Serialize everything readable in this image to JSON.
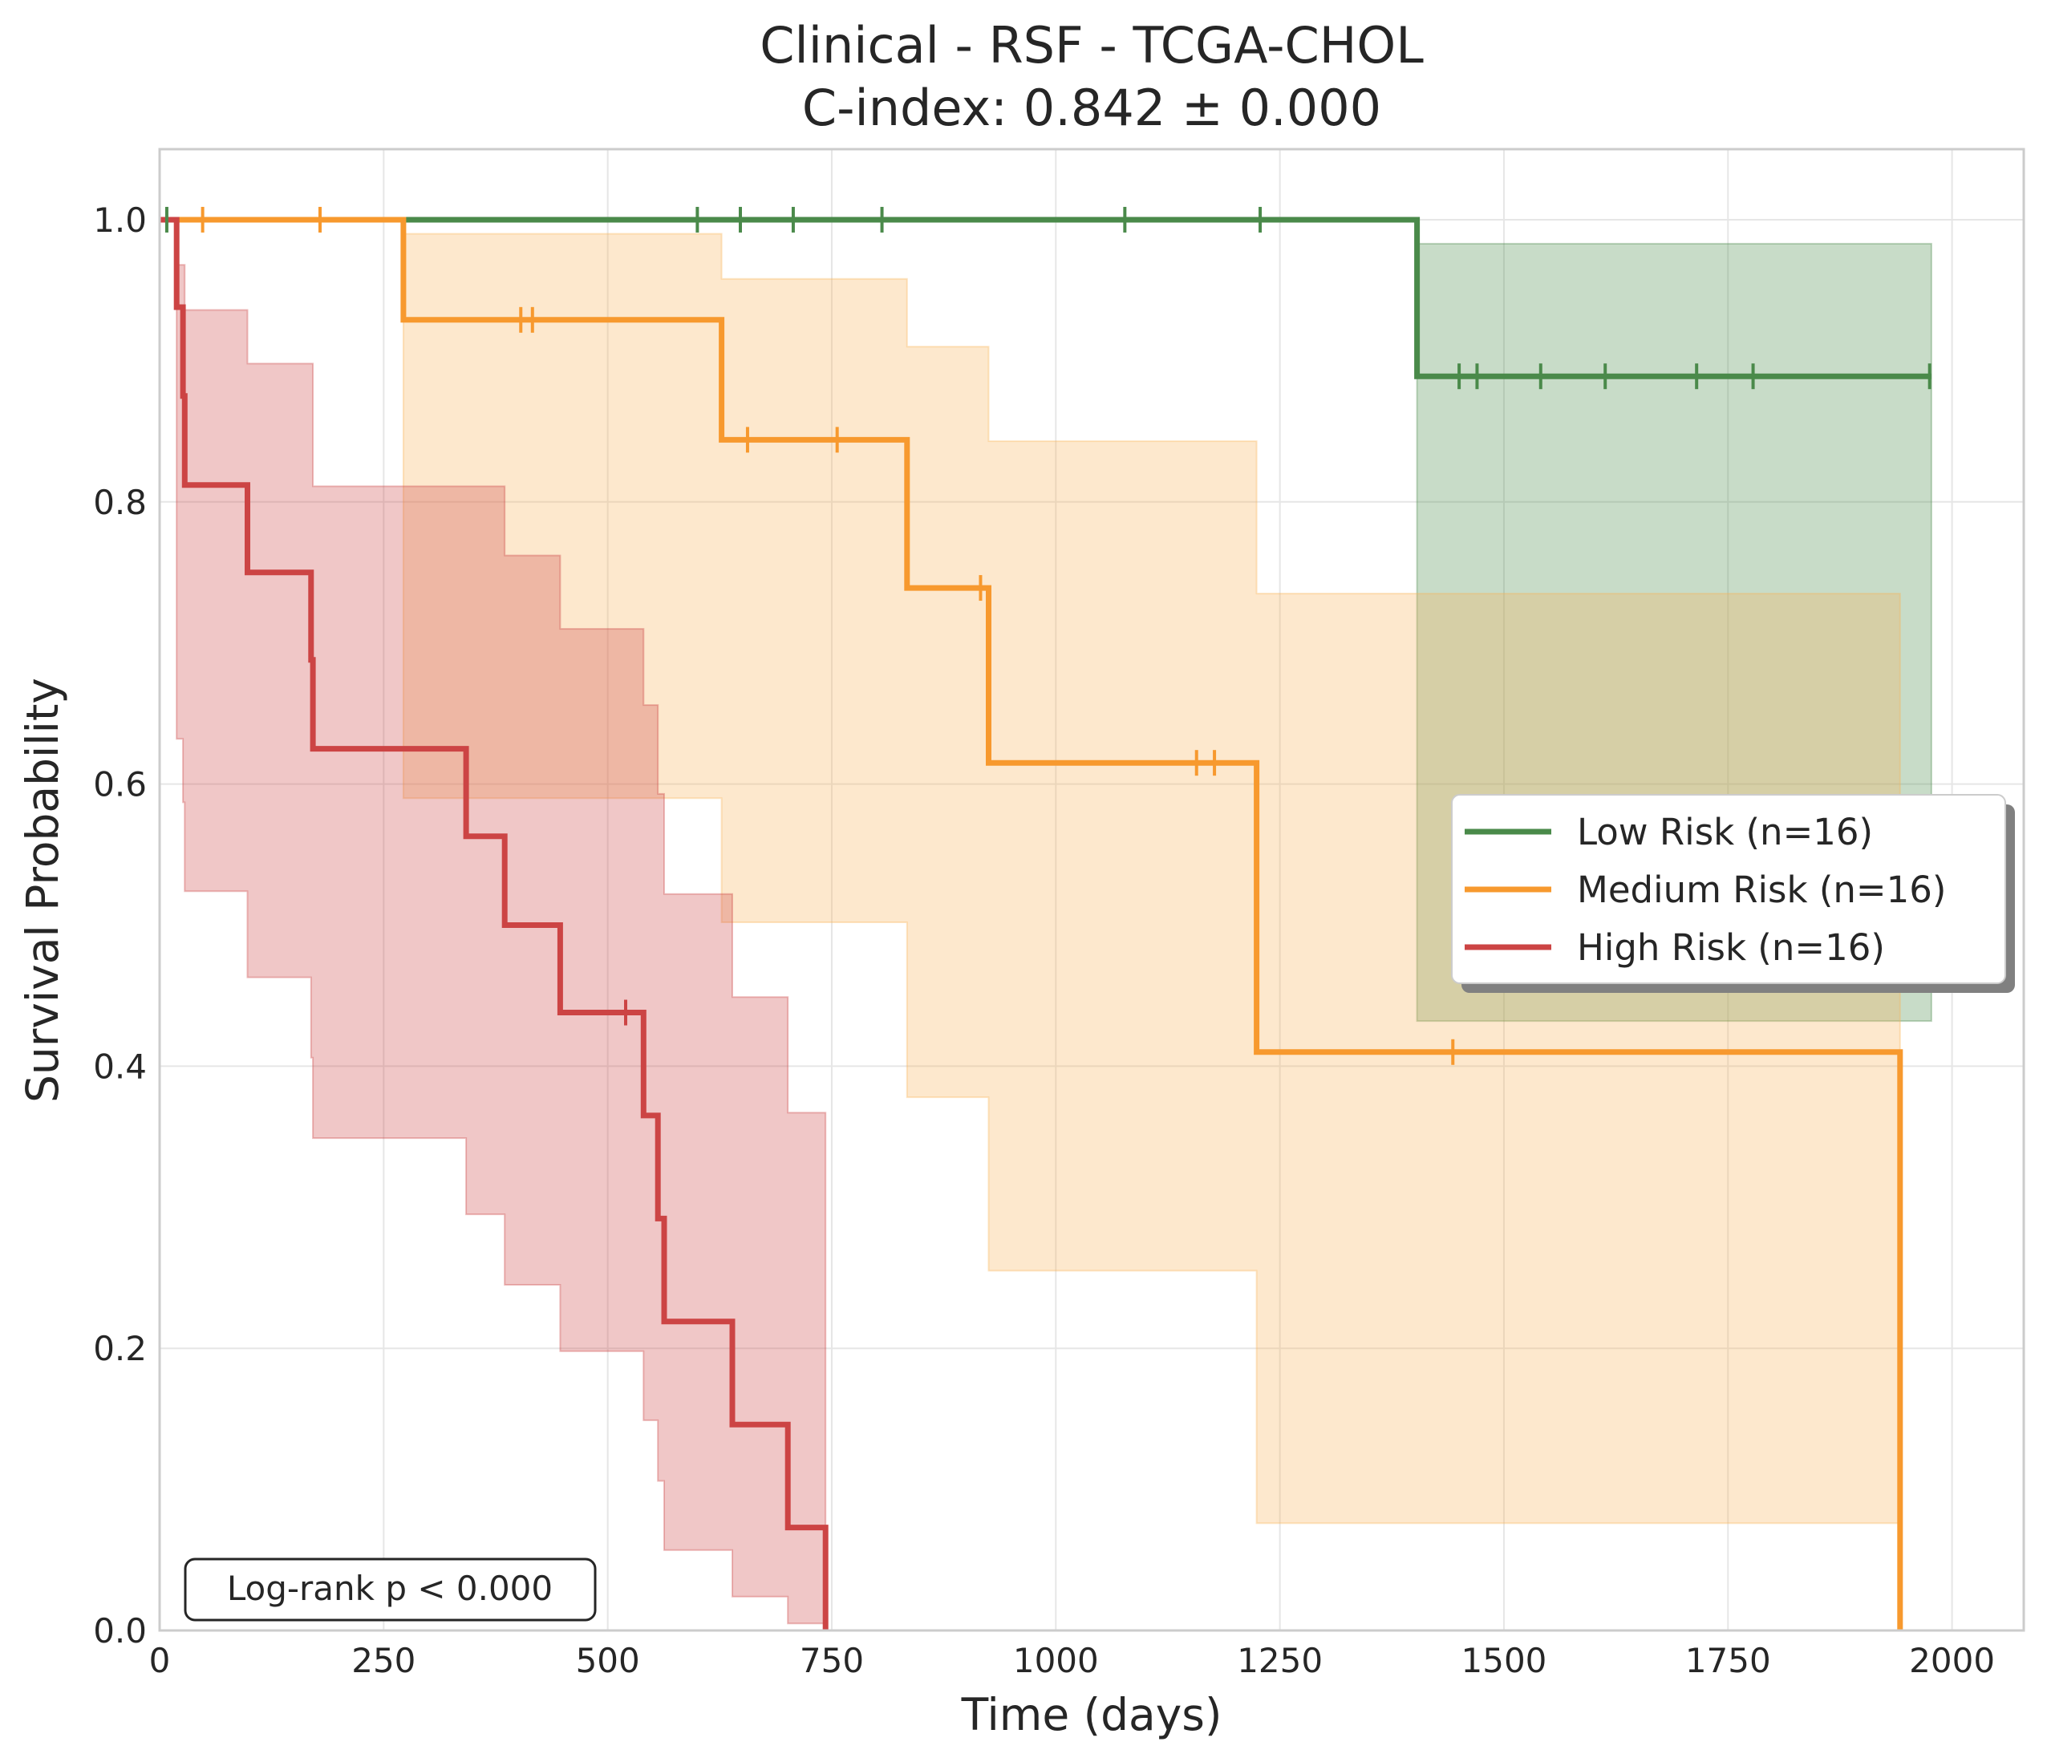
{
  "chart_data": {
    "type": "line",
    "subtype": "kaplan-meier",
    "title": "Clinical - RSF - TCGA-CHOL",
    "subtitle": "C-index: 0.842 ± 0.000",
    "xlabel": "Time (days)",
    "ylabel": "Survival Probability",
    "xlim": [
      0,
      2080
    ],
    "ylim": [
      0,
      1.05
    ],
    "xticks": [
      0,
      250,
      500,
      750,
      1000,
      1250,
      1500,
      1750,
      2000
    ],
    "xtick_labels": [
      "0",
      "250",
      "500",
      "750",
      "1000",
      "1250",
      "1500",
      "1750",
      "2000"
    ],
    "yticks": [
      0.0,
      0.2,
      0.4,
      0.6,
      0.8,
      1.0
    ],
    "ytick_labels": [
      "0.0",
      "0.2",
      "0.4",
      "0.6",
      "0.8",
      "1.0"
    ],
    "grid": true,
    "legend_position": "center-right",
    "annotation": "Log-rank p < 0.000",
    "series": [
      {
        "name": "Low Risk (n=16)",
        "color": "#4a8a4a",
        "fill_color": "#4a8a4a",
        "steps": [
          [
            0,
            1.0
          ],
          [
            1403,
            0.889
          ],
          [
            1977,
            0.889
          ]
        ],
        "ci": [
          [
            0,
            1.0,
            1.0
          ],
          [
            1403,
            0.432,
            0.983
          ],
          [
            1977,
            0.432,
            0.983
          ]
        ],
        "censors": [
          [
            8,
            1.0
          ],
          [
            600,
            1.0
          ],
          [
            648,
            1.0
          ],
          [
            707,
            1.0
          ],
          [
            806,
            1.0
          ],
          [
            1077,
            1.0
          ],
          [
            1228,
            1.0
          ],
          [
            1450,
            0.889
          ],
          [
            1470,
            0.889
          ],
          [
            1541,
            0.889
          ],
          [
            1613,
            0.889
          ],
          [
            1715,
            0.889
          ],
          [
            1778,
            0.889
          ],
          [
            1975,
            0.889
          ]
        ]
      },
      {
        "name": "Medium Risk (n=16)",
        "color": "#f7992e",
        "fill_color": "#f9b45a",
        "steps": [
          [
            0,
            1.0
          ],
          [
            272,
            0.929
          ],
          [
            627,
            0.844
          ],
          [
            834,
            0.739
          ],
          [
            925,
            0.615
          ],
          [
            1224,
            0.41
          ],
          [
            1942,
            0.0
          ]
        ],
        "ci": [
          [
            0,
            1.0,
            1.0
          ],
          [
            272,
            0.59,
            0.99
          ],
          [
            627,
            0.502,
            0.958
          ],
          [
            834,
            0.378,
            0.91
          ],
          [
            925,
            0.255,
            0.843
          ],
          [
            1224,
            0.076,
            0.735
          ],
          [
            1942,
            0.076,
            0.735
          ]
        ],
        "censors": [
          [
            48,
            1.0
          ],
          [
            179,
            1.0
          ],
          [
            403,
            0.929
          ],
          [
            416,
            0.929
          ],
          [
            656,
            0.844
          ],
          [
            756,
            0.844
          ],
          [
            916,
            0.739
          ],
          [
            1157,
            0.615
          ],
          [
            1177,
            0.615
          ],
          [
            1443,
            0.41
          ]
        ]
      },
      {
        "name": "High Risk (n=16)",
        "color": "#cc4444",
        "fill_color": "#cc4444",
        "steps": [
          [
            0,
            1.0
          ],
          [
            19,
            0.938
          ],
          [
            26,
            0.875
          ],
          [
            28,
            0.812
          ],
          [
            98,
            0.75
          ],
          [
            169,
            0.688
          ],
          [
            171,
            0.625
          ],
          [
            342,
            0.563
          ],
          [
            385,
            0.5
          ],
          [
            447,
            0.438
          ],
          [
            540,
            0.365
          ],
          [
            556,
            0.292
          ],
          [
            563,
            0.219
          ],
          [
            639,
            0.146
          ],
          [
            701,
            0.073
          ],
          [
            743,
            0.0
          ]
        ],
        "ci": [
          [
            19,
            0.632,
            0.968
          ],
          [
            26,
            0.587,
            0.968
          ],
          [
            28,
            0.524,
            0.936
          ],
          [
            98,
            0.463,
            0.898
          ],
          [
            169,
            0.406,
            0.898
          ],
          [
            171,
            0.349,
            0.811
          ],
          [
            342,
            0.295,
            0.811
          ],
          [
            385,
            0.245,
            0.762
          ],
          [
            447,
            0.198,
            0.71
          ],
          [
            540,
            0.149,
            0.656
          ],
          [
            556,
            0.106,
            0.593
          ],
          [
            563,
            0.057,
            0.522
          ],
          [
            639,
            0.024,
            0.449
          ],
          [
            701,
            0.005,
            0.367
          ],
          [
            743,
            0.005,
            0.277
          ]
        ],
        "censors": [
          [
            520,
            0.438
          ]
        ]
      }
    ]
  }
}
